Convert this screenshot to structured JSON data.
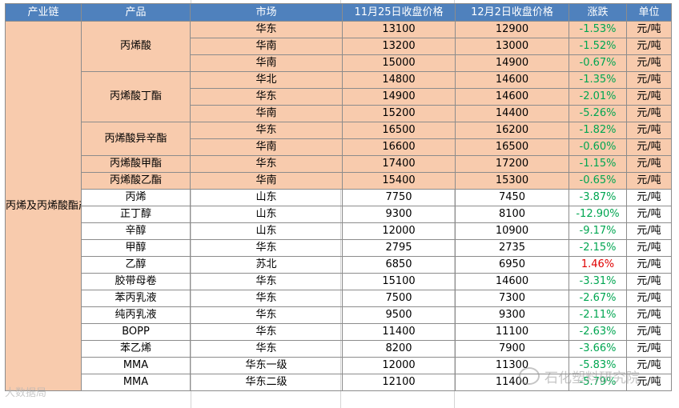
{
  "headers": {
    "chain": "产业链",
    "product": "产品",
    "market": "市场",
    "price_1125": "11月25日收盘价格",
    "price_122": "12月2日收盘价格",
    "change": "涨跌",
    "unit": "单位"
  },
  "chain_label": "丙烯及丙烯酸酯产业链",
  "shaded_color": "#f8cbad",
  "header_color": "#4f81bd",
  "down_color": "#00a651",
  "up_color": "#e00000",
  "shaded_groups": [
    {
      "product": "丙烯酸",
      "rows": [
        {
          "market": "华东",
          "p1": "13100",
          "p2": "12900",
          "chg": "-1.53%",
          "unit": "元/吨"
        },
        {
          "market": "华南",
          "p1": "13200",
          "p2": "13000",
          "chg": "-1.52%",
          "unit": "元/吨"
        },
        {
          "market": "华南",
          "p1": "15000",
          "p2": "14900",
          "chg": "-0.67%",
          "unit": "元/吨"
        }
      ]
    },
    {
      "product": "丙烯酸丁酯",
      "rows": [
        {
          "market": "华北",
          "p1": "14800",
          "p2": "14600",
          "chg": "-1.35%",
          "unit": "元/吨"
        },
        {
          "market": "华东",
          "p1": "14900",
          "p2": "14600",
          "chg": "-2.01%",
          "unit": "元/吨"
        },
        {
          "market": "华南",
          "p1": "15200",
          "p2": "14400",
          "chg": "-5.26%",
          "unit": "元/吨"
        }
      ]
    },
    {
      "product": "丙烯酸异辛酯",
      "rows": [
        {
          "market": "华东",
          "p1": "16500",
          "p2": "16200",
          "chg": "-1.82%",
          "unit": "元/吨"
        },
        {
          "market": "华南",
          "p1": "16600",
          "p2": "16500",
          "chg": "-0.60%",
          "unit": "元/吨"
        }
      ]
    },
    {
      "product": "丙烯酸甲酯",
      "rows": [
        {
          "market": "华东",
          "p1": "17400",
          "p2": "17200",
          "chg": "-1.15%",
          "unit": "元/吨"
        }
      ]
    },
    {
      "product": "丙烯酸乙酯",
      "rows": [
        {
          "market": "华南",
          "p1": "15400",
          "p2": "15300",
          "chg": "-0.65%",
          "unit": "元/吨"
        }
      ]
    }
  ],
  "plain_rows": [
    {
      "product": "丙烯",
      "market": "山东",
      "p1": "7750",
      "p2": "7450",
      "chg": "-3.87%",
      "unit": "元/吨",
      "up": false
    },
    {
      "product": "正丁醇",
      "market": "山东",
      "p1": "9300",
      "p2": "8100",
      "chg": "-12.90%",
      "unit": "元/吨",
      "up": false
    },
    {
      "product": "辛醇",
      "market": "山东",
      "p1": "12000",
      "p2": "10900",
      "chg": "-9.17%",
      "unit": "元/吨",
      "up": false
    },
    {
      "product": "甲醇",
      "market": "华东",
      "p1": "2795",
      "p2": "2735",
      "chg": "-2.15%",
      "unit": "元/吨",
      "up": false
    },
    {
      "product": "乙醇",
      "market": "苏北",
      "p1": "6850",
      "p2": "6950",
      "chg": "1.46%",
      "unit": "元/吨",
      "up": true
    },
    {
      "product": "胶带母卷",
      "market": "华东",
      "p1": "15100",
      "p2": "14600",
      "chg": "-3.31%",
      "unit": "元/吨",
      "up": false
    },
    {
      "product": "苯丙乳液",
      "market": "华东",
      "p1": "7500",
      "p2": "7300",
      "chg": "-2.67%",
      "unit": "元/吨",
      "up": false
    },
    {
      "product": "纯丙乳液",
      "market": "华东",
      "p1": "9500",
      "p2": "9300",
      "chg": "-2.11%",
      "unit": "元/吨",
      "up": false
    },
    {
      "product": "BOPP",
      "market": "华东",
      "p1": "11400",
      "p2": "11100",
      "chg": "-2.63%",
      "unit": "元/吨",
      "up": false
    },
    {
      "product": "苯乙烯",
      "market": "华东",
      "p1": "8200",
      "p2": "7900",
      "chg": "-3.66%",
      "unit": "元/吨",
      "up": false
    },
    {
      "product": "MMA",
      "market": "华东一级",
      "p1": "12000",
      "p2": "11300",
      "chg": "-5.83%",
      "unit": "元/吨",
      "up": false
    },
    {
      "product": "MMA",
      "market": "华东二级",
      "p1": "12100",
      "p2": "11400",
      "chg": "-5.79%",
      "unit": "元/吨",
      "up": false
    }
  ],
  "watermarks": {
    "right_text": "石化塑料研究院",
    "left_text": "大数据局"
  }
}
